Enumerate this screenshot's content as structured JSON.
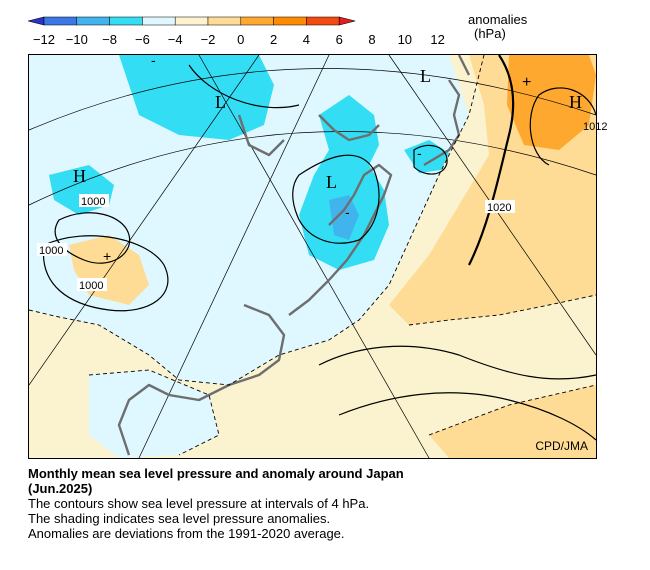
{
  "legend": {
    "title": "anomalies",
    "units": "(hPa)",
    "tick_labels": [
      "−12",
      "−10",
      "−8",
      "−6",
      "−4",
      "−2",
      "0",
      "2",
      "4",
      "6",
      "8",
      "10",
      "12"
    ],
    "colors": [
      "#2b33c9",
      "#3a78e6",
      "#41b4ee",
      "#33ddf3",
      "#dff7ff",
      "#fdf4cf",
      "#fedc95",
      "#ffa830",
      "#ff8c00",
      "#f24a0f",
      "#e31e1e"
    ]
  },
  "map": {
    "centers": [
      {
        "name": "low-north-china",
        "label": "L"
      },
      {
        "name": "low-japan-sea",
        "label": "L"
      },
      {
        "name": "low-okhotsk",
        "label": "L"
      },
      {
        "name": "high-pacific",
        "label": "H"
      },
      {
        "name": "high-west",
        "label": "H"
      }
    ],
    "markers": [
      {
        "name": "anomaly-minus-north",
        "label": "-"
      },
      {
        "name": "anomaly-minus-korea",
        "label": "-"
      },
      {
        "name": "anomaly-minus-kuril",
        "label": "-"
      },
      {
        "name": "anomaly-plus-pacific",
        "label": "+"
      },
      {
        "name": "anomaly-plus-west",
        "label": "+"
      }
    ],
    "contour_labels": [
      {
        "name": "isobar-label-1000-a",
        "label": "1000"
      },
      {
        "name": "isobar-label-1000-b",
        "label": "1000"
      },
      {
        "name": "isobar-label-1000-c",
        "label": "1000"
      },
      {
        "name": "isobar-label-1020",
        "label": "1020"
      },
      {
        "name": "isobar-label-1012",
        "label": "1012"
      }
    ],
    "credit": "CPD/JMA"
  },
  "caption": {
    "title_line1": "Monthly mean sea level pressure and anomaly around Japan",
    "title_line2": "(Jun.2025)",
    "line1": "The contours show sea level pressure at intervals of 4 hPa.",
    "line2": "The shading indicates sea level pressure anomalies.",
    "line3": "Anomalies are deviations from the 1991-2020 average."
  }
}
